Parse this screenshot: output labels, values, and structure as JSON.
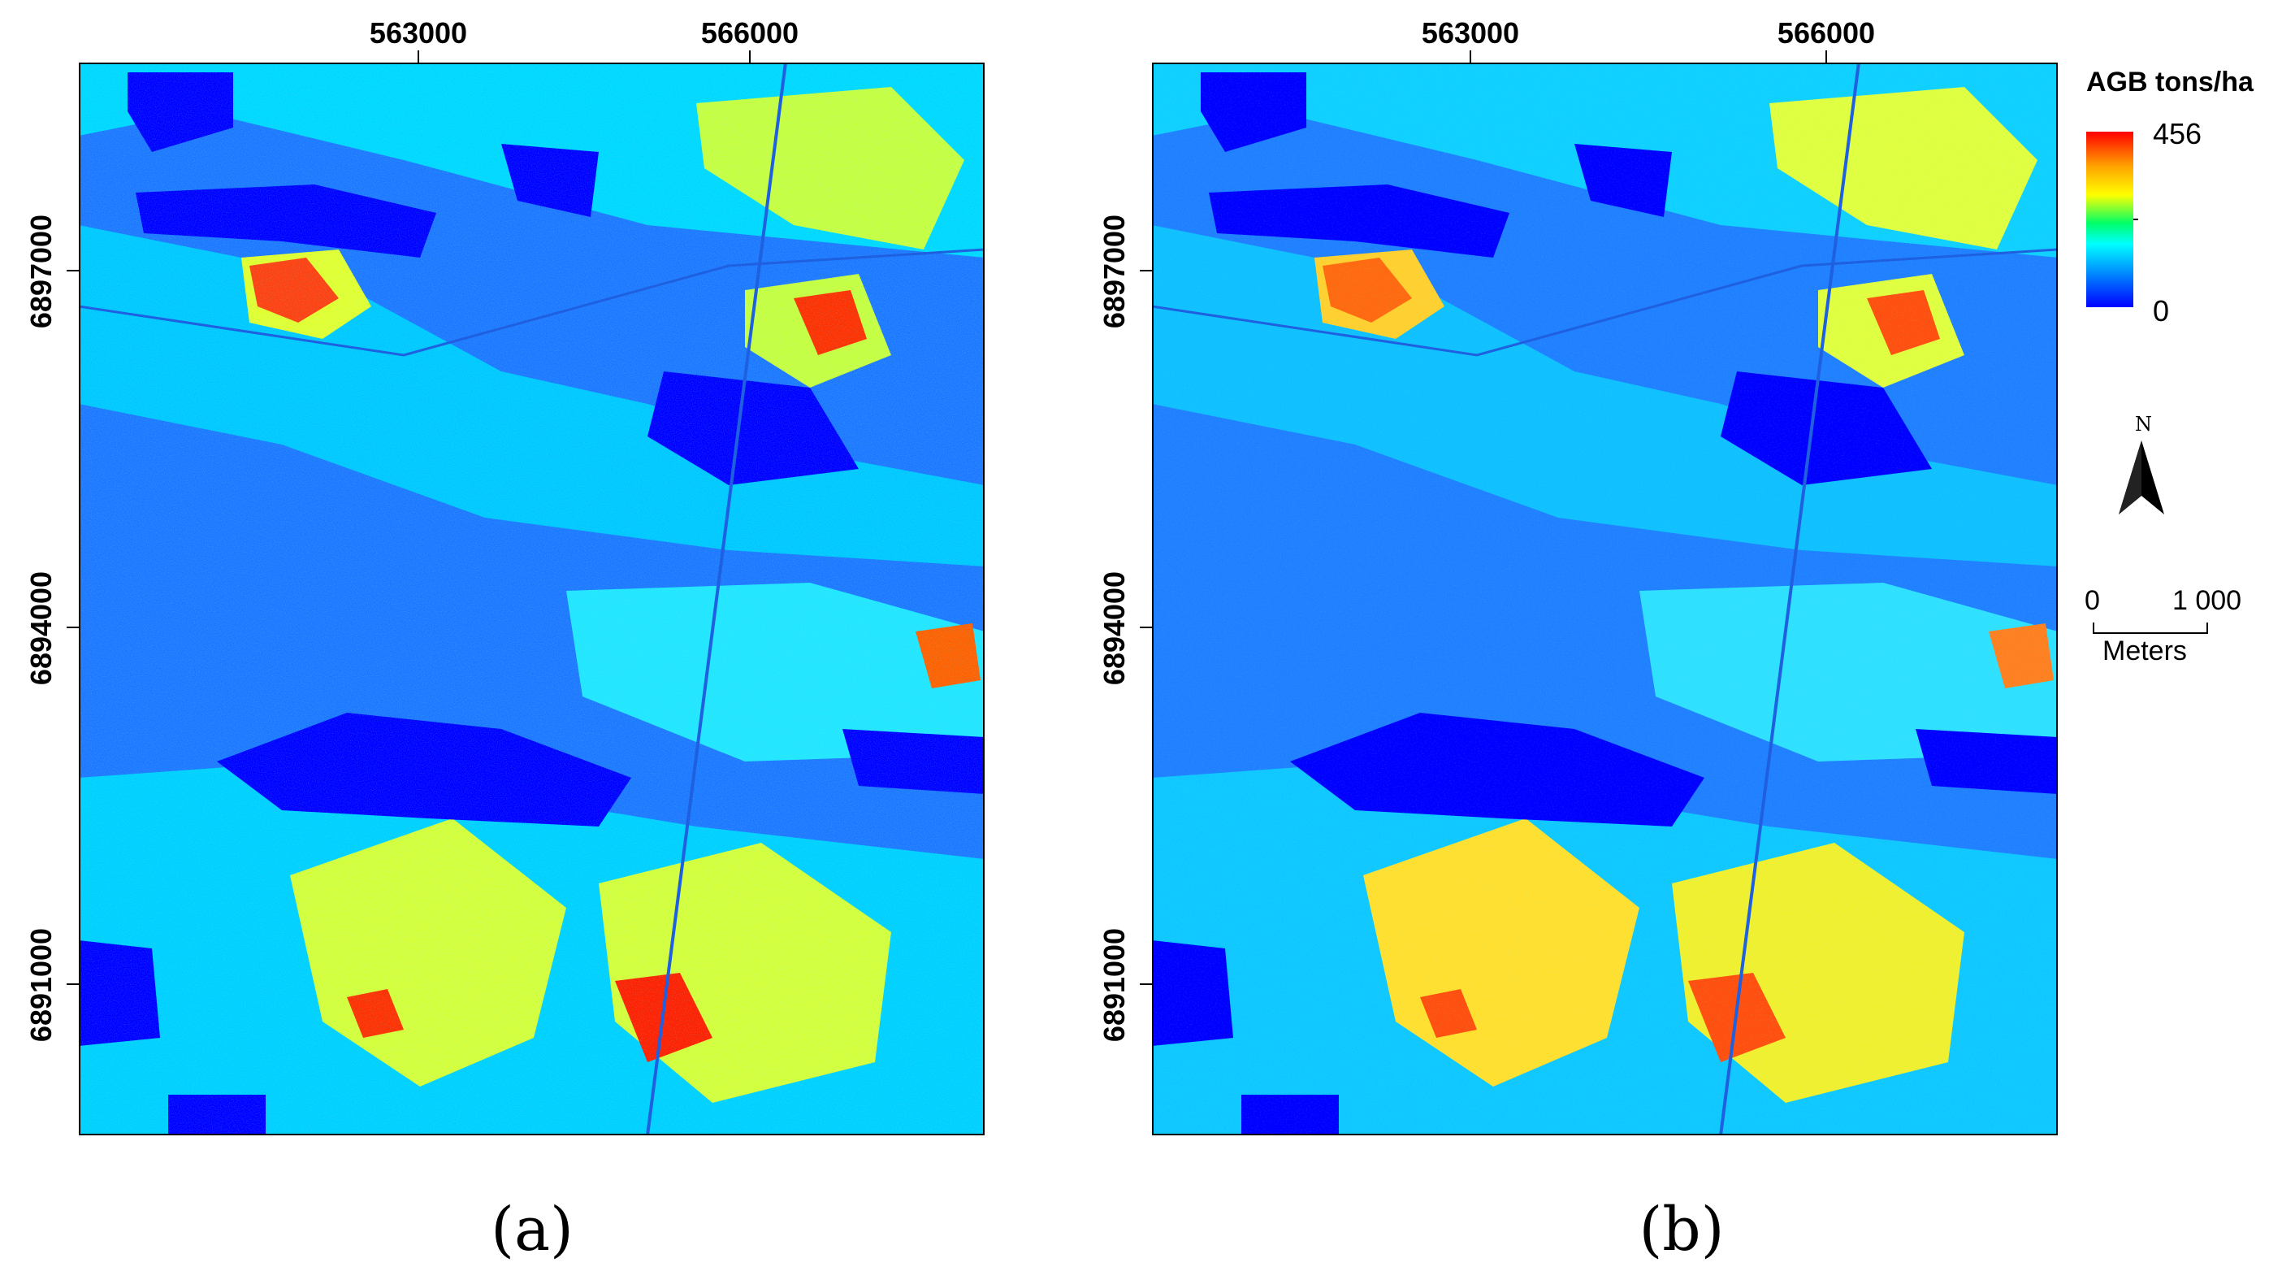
{
  "maps": [
    {
      "panel_label": "(a)",
      "x_ticks": [
        "563000",
        "566000"
      ],
      "y_ticks": [
        "6897000",
        "6894000",
        "6891000"
      ]
    },
    {
      "panel_label": "(b)",
      "x_ticks": [
        "563000",
        "566000"
      ],
      "y_ticks": [
        "6897000",
        "6894000",
        "6891000"
      ]
    }
  ],
  "legend": {
    "title": "AGB tons/ha",
    "max_label": "456",
    "min_label": "0",
    "colors": [
      "#ff0000",
      "#ffa500",
      "#ffff00",
      "#00ff66",
      "#00ffff",
      "#0080ff",
      "#0000ff"
    ]
  },
  "north_arrow": {
    "label": "N"
  },
  "scale_bar": {
    "start": "0",
    "end": "1 000",
    "unit": "Meters"
  },
  "palette": {
    "water": "#0000ff",
    "low": "#1e78ff",
    "mid": "#00e0ff",
    "high": "#ccff33",
    "peak": "#ff2000"
  }
}
